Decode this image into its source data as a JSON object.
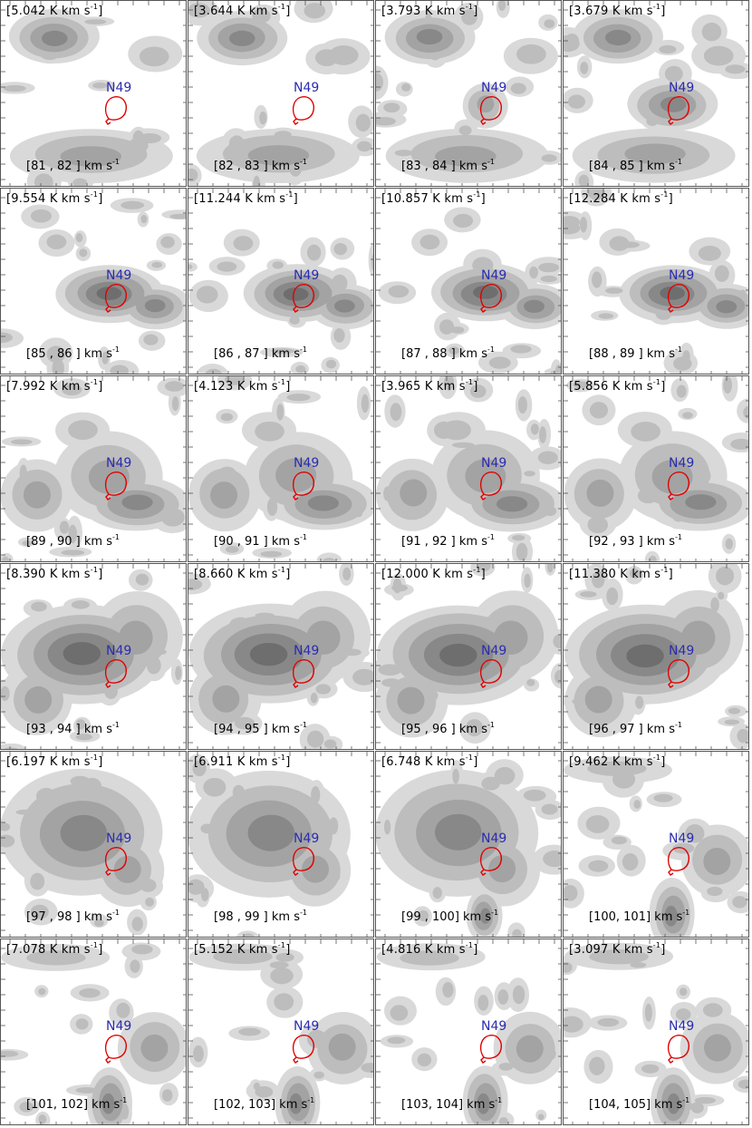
{
  "unit_label": "K km s",
  "unit_exp": "-1",
  "source_label": "N49",
  "colors": {
    "contour_levels": [
      "#d9d9d9",
      "#bdbdbd",
      "#a3a3a3",
      "#888888",
      "#6e6e6e",
      "#555555",
      "#3c3c3c"
    ],
    "bubble": "#e00000",
    "source_label": "#2b2bb0"
  },
  "panels": [
    {
      "peak": "[5.042",
      "range": "[81 , 82 ]",
      "v": 81
    },
    {
      "peak": "[3.644",
      "range": "[82 , 83 ]",
      "v": 82
    },
    {
      "peak": "[3.793",
      "range": "[83 , 84 ]",
      "v": 83
    },
    {
      "peak": "[3.679",
      "range": "[84 , 85 ]",
      "v": 84
    },
    {
      "peak": "[9.554",
      "range": "[85 , 86 ]",
      "v": 85
    },
    {
      "peak": "[11.244",
      "range": "[86 , 87 ]",
      "v": 86
    },
    {
      "peak": "[10.857",
      "range": "[87 , 88 ]",
      "v": 87
    },
    {
      "peak": "[12.284",
      "range": "[88 , 89 ]",
      "v": 88
    },
    {
      "peak": "[7.992",
      "range": "[89 , 90 ]",
      "v": 89
    },
    {
      "peak": "[4.123",
      "range": "[90 , 91 ]",
      "v": 90
    },
    {
      "peak": "[3.965",
      "range": "[91 , 92 ]",
      "v": 91
    },
    {
      "peak": "[5.856",
      "range": "[92 , 93 ]",
      "v": 92
    },
    {
      "peak": "[8.390",
      "range": "[93 , 94 ]",
      "v": 93
    },
    {
      "peak": "[8.660",
      "range": "[94 , 95 ]",
      "v": 94
    },
    {
      "peak": "[12.000",
      "range": "[95 , 96 ]",
      "v": 95
    },
    {
      "peak": "[11.380",
      "range": "[96 , 97 ]",
      "v": 96
    },
    {
      "peak": "[6.197",
      "range": "[97 , 98 ]",
      "v": 97
    },
    {
      "peak": "[6.911",
      "range": "[98 , 99 ]",
      "v": 98
    },
    {
      "peak": "[6.748",
      "range": "[99 , 100]",
      "v": 99
    },
    {
      "peak": "[9.462",
      "range": "[100, 101]",
      "v": 100
    },
    {
      "peak": "[7.078",
      "range": "[101, 102]",
      "v": 101
    },
    {
      "peak": "[5.152",
      "range": "[102, 103]",
      "v": 102
    },
    {
      "peak": "[4.816",
      "range": "[103, 104]",
      "v": 103
    },
    {
      "peak": "[3.097",
      "range": "[104, 105]",
      "v": 104
    }
  ]
}
